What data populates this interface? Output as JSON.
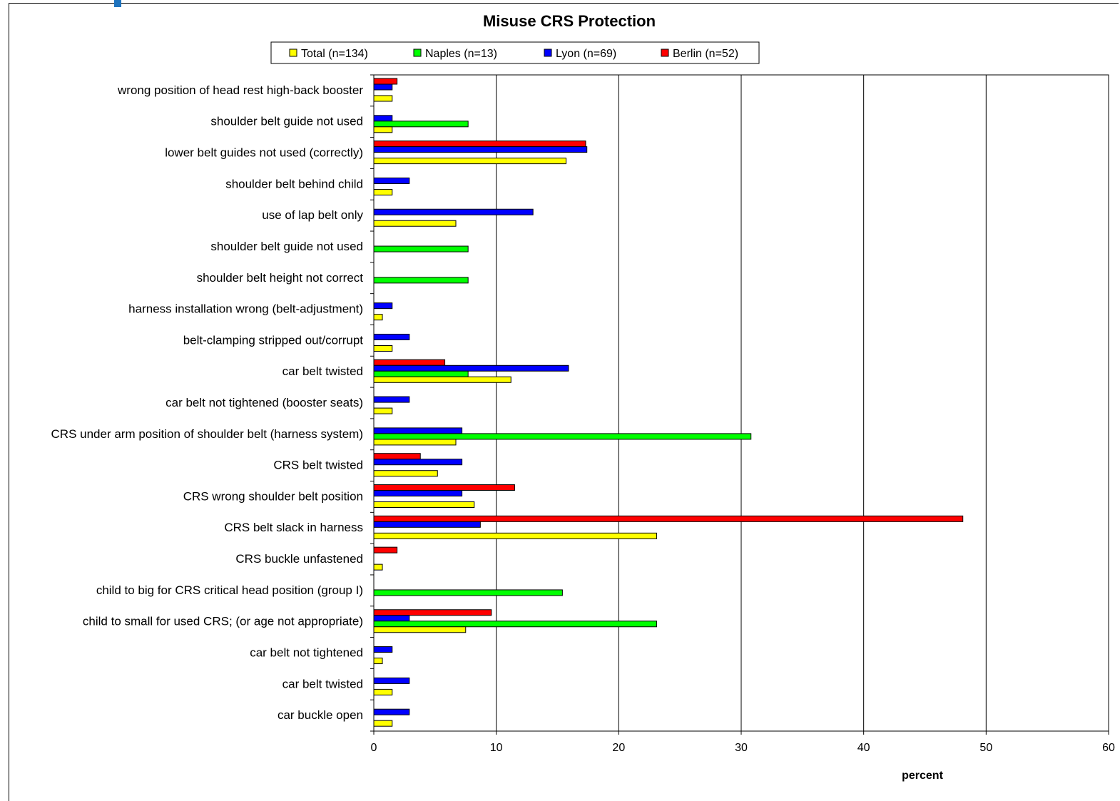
{
  "chart_data": {
    "type": "bar",
    "orientation": "horizontal",
    "title": "Misuse CRS Protection",
    "xlabel": "percent",
    "ylabel": "",
    "xlim": [
      0,
      60
    ],
    "xticks": [
      0,
      10,
      20,
      30,
      40,
      50,
      60
    ],
    "grid": true,
    "legend_position": "top",
    "categories": [
      "wrong position of head rest high-back booster",
      "shoulder belt guide not used",
      "lower belt guides not used (correctly)",
      "shoulder belt behind child",
      "use of lap belt only",
      "shoulder belt guide not used",
      "shoulder belt height not correct",
      "harness installation wrong (belt-adjustment)",
      "belt-clamping stripped out/corrupt",
      "car belt twisted",
      "car belt not tightened (booster seats)",
      "CRS under arm position of shoulder belt (harness system)",
      "CRS belt twisted",
      "CRS wrong shoulder belt position",
      "CRS belt slack in harness",
      "CRS buckle unfastened",
      "child to big for CRS critical head position (group I)",
      "child to small for used CRS; (or age not appropriate)",
      "car belt not tightened",
      "car belt twisted",
      "car buckle open"
    ],
    "series": [
      {
        "name": "Total (n=134)",
        "color": "#ffff00",
        "values": [
          1.5,
          1.5,
          15.7,
          1.5,
          6.7,
          0,
          0,
          0.7,
          1.5,
          11.2,
          1.5,
          6.7,
          5.2,
          8.2,
          23.1,
          0.7,
          0,
          7.5,
          0.7,
          1.5,
          1.5
        ]
      },
      {
        "name": "Naples (n=13)",
        "color": "#00ff00",
        "values": [
          0,
          7.7,
          0,
          0,
          0,
          7.7,
          7.7,
          0,
          0,
          7.7,
          0,
          30.8,
          0,
          0,
          0,
          0,
          15.4,
          23.1,
          0,
          0,
          0
        ]
      },
      {
        "name": "Lyon (n=69)",
        "color": "#0000ff",
        "values": [
          1.5,
          1.5,
          17.4,
          2.9,
          13.0,
          0,
          0,
          1.5,
          2.9,
          15.9,
          2.9,
          7.2,
          7.2,
          7.2,
          8.7,
          0,
          0,
          2.9,
          1.5,
          2.9,
          2.9
        ]
      },
      {
        "name": "Berlin (n=52)",
        "color": "#ff0000",
        "values": [
          1.9,
          0,
          17.3,
          0,
          0,
          0,
          0,
          0,
          0,
          5.8,
          0,
          0,
          3.8,
          11.5,
          48.1,
          1.9,
          0,
          9.6,
          0,
          0,
          0
        ]
      }
    ]
  }
}
